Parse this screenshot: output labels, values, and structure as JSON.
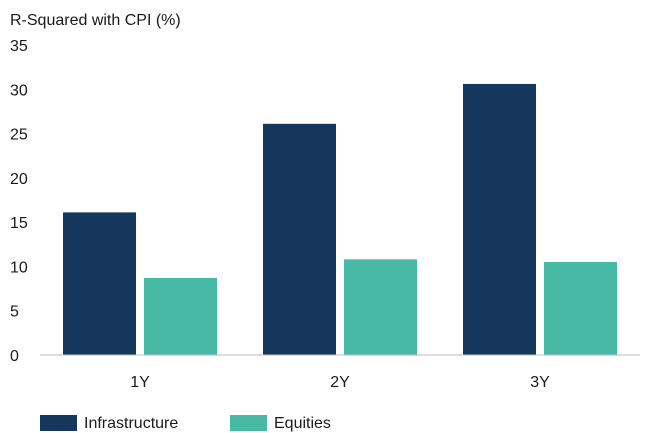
{
  "chart_data": {
    "type": "bar",
    "ylabel": "R-Squared with CPI (%)",
    "xlabel": "",
    "categories": [
      "1Y",
      "2Y",
      "3Y"
    ],
    "series": [
      {
        "name": "Infrastructure",
        "color": "#15375e",
        "values": [
          16.1,
          26.1,
          30.6
        ]
      },
      {
        "name": "Equities",
        "color": "#47b9a5",
        "values": [
          8.7,
          10.8,
          10.5
        ]
      }
    ],
    "ylim": [
      0,
      35
    ],
    "yticks": [
      0,
      5,
      10,
      15,
      20,
      25,
      30,
      35
    ],
    "grid": false,
    "legend": "bottom-left"
  }
}
